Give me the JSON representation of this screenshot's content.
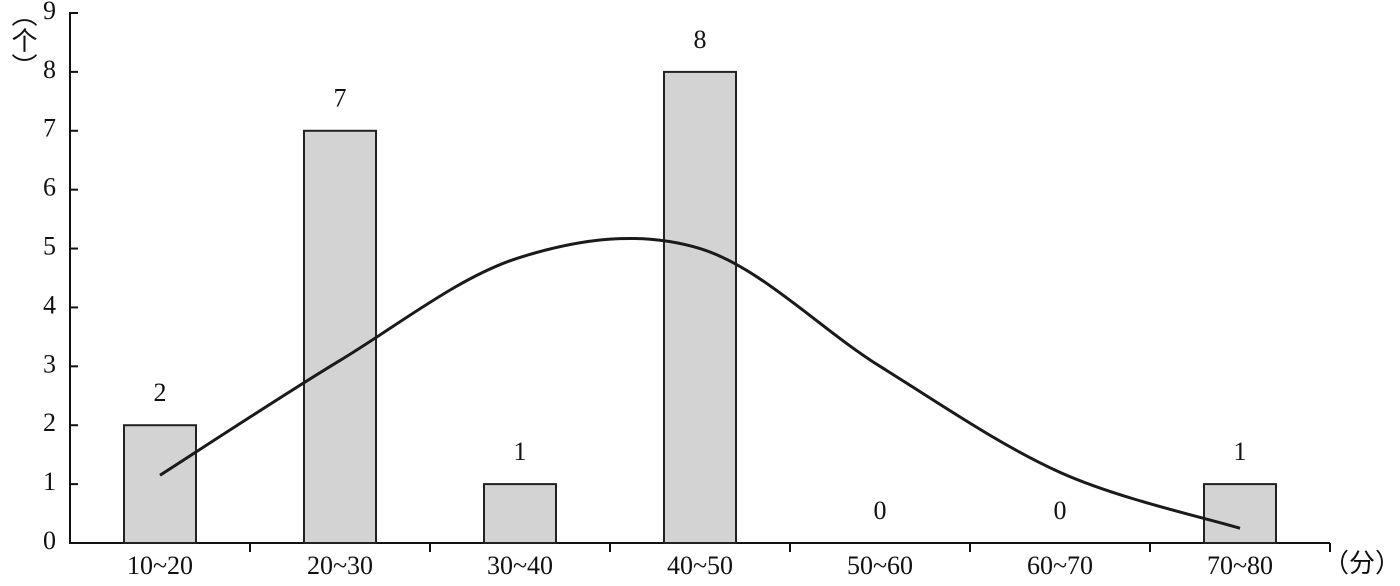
{
  "chart_data": {
    "type": "bar",
    "y_label": "（个）",
    "x_label": "（分）",
    "categories": [
      "10~20",
      "20~30",
      "30~40",
      "40~50",
      "50~60",
      "60~70",
      "70~80"
    ],
    "series": [
      {
        "type": "bar",
        "color": "#d3d3d3",
        "values": [
          2,
          7,
          1,
          8,
          0,
          0,
          1
        ]
      },
      {
        "type": "line",
        "color": "#1a1a1a",
        "values": [
          1.15,
          3.1,
          4.85,
          5.0,
          3.0,
          1.2,
          0.25
        ]
      }
    ],
    "ylim": [
      0,
      9
    ],
    "yticks": [
      0,
      1,
      2,
      3,
      4,
      5,
      6,
      7,
      8,
      9
    ],
    "grid": false
  }
}
